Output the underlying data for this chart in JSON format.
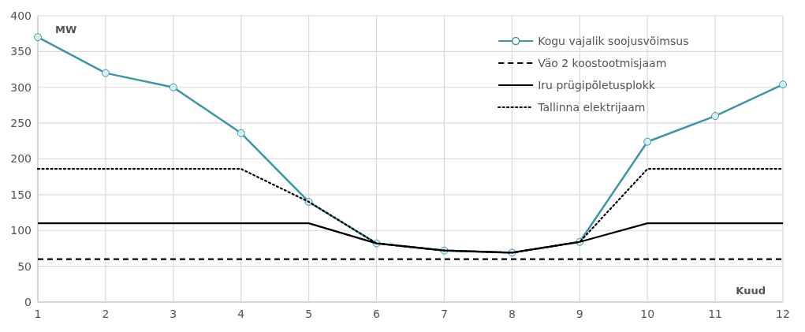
{
  "chart_data": {
    "type": "line",
    "xlabel": "Kuud",
    "ylabel": "MW",
    "x": [
      1,
      2,
      3,
      4,
      5,
      6,
      7,
      8,
      9,
      10,
      11,
      12
    ],
    "xlim": [
      1,
      12
    ],
    "xticks": [
      1,
      2,
      3,
      4,
      5,
      6,
      7,
      8,
      9,
      10,
      11,
      12
    ],
    "ylim": [
      0,
      400
    ],
    "yticks": [
      0,
      50,
      100,
      150,
      200,
      250,
      300,
      350,
      400
    ],
    "grid": true,
    "legend": "top right",
    "series": [
      {
        "name": "Kogu vajalik soojusvõimsus",
        "color": "#3a96a8",
        "values": [
          370,
          320,
          300,
          236,
          140,
          82,
          72,
          69,
          84,
          224,
          260,
          304
        ],
        "marker": "circle",
        "line_style": "solid"
      },
      {
        "name": "Väo 2 koostootmisjaam",
        "color": "#000000",
        "values": [
          60,
          60,
          60,
          60,
          60,
          60,
          60,
          60,
          60,
          60,
          60,
          60
        ],
        "marker": "none",
        "line_style": "dashed"
      },
      {
        "name": "Iru prügipõletusplokk",
        "color": "#000000",
        "values": [
          110,
          110,
          110,
          110,
          110,
          82,
          72,
          69,
          84,
          110,
          110,
          110
        ],
        "marker": "none",
        "line_style": "solid"
      },
      {
        "name": "Tallinna elektrijaam",
        "color": "#000000",
        "values": [
          186,
          186,
          186,
          186,
          140,
          82,
          72,
          69,
          84,
          186,
          186,
          186
        ],
        "marker": "none",
        "line_style": "dotted"
      }
    ]
  }
}
